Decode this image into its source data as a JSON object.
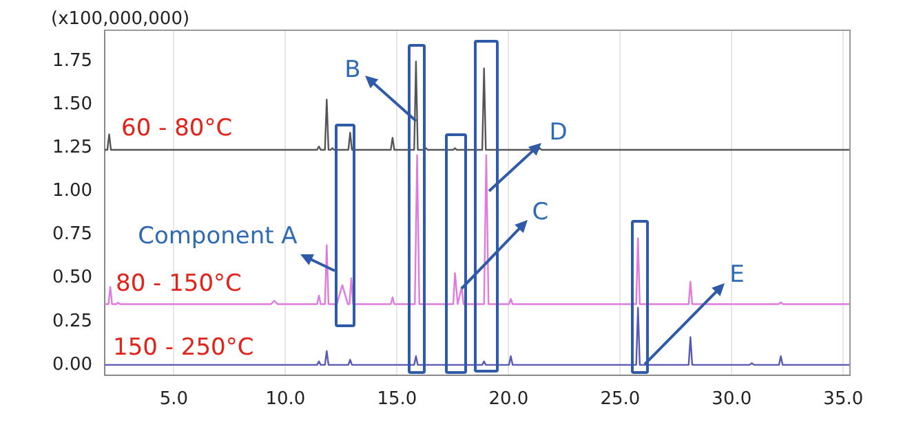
{
  "chart_data": {
    "type": "line",
    "ylabel": "(x100,000,000)",
    "xlim": [
      1.9,
      35.3
    ],
    "xticks": [
      {
        "value": 5,
        "label": "5.0"
      },
      {
        "value": 10,
        "label": "10.0"
      },
      {
        "value": 15,
        "label": "15.0"
      },
      {
        "value": 20,
        "label": "20.0"
      },
      {
        "value": 25,
        "label": "25.0"
      },
      {
        "value": 30,
        "label": "30.0"
      },
      {
        "value": 35,
        "label": "35.0"
      }
    ],
    "ylim": [
      -0.06,
      1.93
    ],
    "yticks": [
      {
        "value": 0,
        "label": "0.00"
      },
      {
        "value": 0.25,
        "label": "0.25"
      },
      {
        "value": 0.5,
        "label": "0.50"
      },
      {
        "value": 0.75,
        "label": "0.75"
      },
      {
        "value": 1,
        "label": "1.00"
      },
      {
        "value": 1.25,
        "label": "1.25"
      },
      {
        "value": 1.5,
        "label": "1.50"
      },
      {
        "value": 1.75,
        "label": "1.75"
      }
    ],
    "grid": "x",
    "legend": false,
    "marker": "none",
    "line_style": "solid",
    "series": [
      {
        "name": "60 - 80°C",
        "color": "#555555",
        "x": [
          1.9,
          2.02,
          2.1,
          2.18,
          11.42,
          11.5,
          11.58,
          11.77,
          11.85,
          11.93,
          12.02,
          12.1,
          12.18,
          12.82,
          12.9,
          12.98,
          14.72,
          14.8,
          14.88,
          15.77,
          15.85,
          15.93,
          16.22,
          16.3,
          16.38,
          17.52,
          17.6,
          17.68,
          18.82,
          18.9,
          18.98,
          21.32,
          21.4,
          21.48,
          35.3
        ],
        "values": [
          1.24,
          1.24,
          1.33,
          1.24,
          1.24,
          1.26,
          1.24,
          1.24,
          1.53,
          1.24,
          1.24,
          1.25,
          1.24,
          1.24,
          1.34,
          1.24,
          1.24,
          1.31,
          1.24,
          1.24,
          1.75,
          1.24,
          1.24,
          1.25,
          1.24,
          1.24,
          1.25,
          1.24,
          1.24,
          1.71,
          1.24,
          1.24,
          1.25,
          1.24,
          1.24
        ]
      },
      {
        "name": "80 - 150°C",
        "color": "#e07ae0",
        "x": [
          1.9,
          2.07,
          2.15,
          2.23,
          2.42,
          2.5,
          2.58,
          9.35,
          9.5,
          9.65,
          11.42,
          11.5,
          11.58,
          11.77,
          11.85,
          11.93,
          12.3,
          12.55,
          12.8,
          12.87,
          12.95,
          13.03,
          14.72,
          14.8,
          14.88,
          15.8,
          15.9,
          16.0,
          17.52,
          17.6,
          17.72,
          17.9,
          17.98,
          18.9,
          19.0,
          19.1,
          20.02,
          20.1,
          20.18,
          25.72,
          25.8,
          25.88,
          28.07,
          28.15,
          28.23,
          32.1,
          32.2,
          32.3,
          35.3
        ],
        "values": [
          0.35,
          0.35,
          0.45,
          0.35,
          0.35,
          0.36,
          0.35,
          0.35,
          0.37,
          0.35,
          0.35,
          0.4,
          0.35,
          0.35,
          0.69,
          0.35,
          0.35,
          0.46,
          0.35,
          0.35,
          0.5,
          0.35,
          0.35,
          0.39,
          0.35,
          0.35,
          1.21,
          0.35,
          0.35,
          0.53,
          0.35,
          0.45,
          0.35,
          0.35,
          1.21,
          0.35,
          0.35,
          0.38,
          0.35,
          0.35,
          0.73,
          0.35,
          0.35,
          0.48,
          0.35,
          0.35,
          0.36,
          0.35,
          0.35
        ]
      },
      {
        "name": "150 - 250°C",
        "color": "#5858b8",
        "x": [
          1.9,
          11.42,
          11.5,
          11.58,
          11.77,
          11.85,
          11.93,
          12.82,
          12.9,
          12.98,
          15.77,
          15.85,
          15.93,
          18.82,
          18.9,
          18.98,
          20.02,
          20.1,
          20.18,
          25.72,
          25.8,
          25.88,
          28.07,
          28.15,
          28.23,
          30.8,
          30.9,
          31.0,
          32.12,
          32.2,
          32.28,
          35.3
        ],
        "values": [
          0,
          0,
          0.02,
          0,
          0,
          0.08,
          0,
          0,
          0.03,
          0,
          0,
          0.05,
          0,
          0,
          0.02,
          0,
          0,
          0.05,
          0,
          0,
          0.33,
          0,
          0,
          0.16,
          0,
          0,
          0.01,
          0,
          0,
          0.05,
          0,
          0
        ]
      }
    ],
    "annotations": [
      {
        "text": "Component A",
        "x": 12.7,
        "y": 0.5
      },
      {
        "text": "B",
        "x": 15.85,
        "y": 1.75
      },
      {
        "text": "C",
        "x": 17.9,
        "y": 0.44
      },
      {
        "text": "D",
        "x": 19.14,
        "y": 1.0
      },
      {
        "text": "E",
        "x": 26.1,
        "y": 0
      }
    ]
  }
}
